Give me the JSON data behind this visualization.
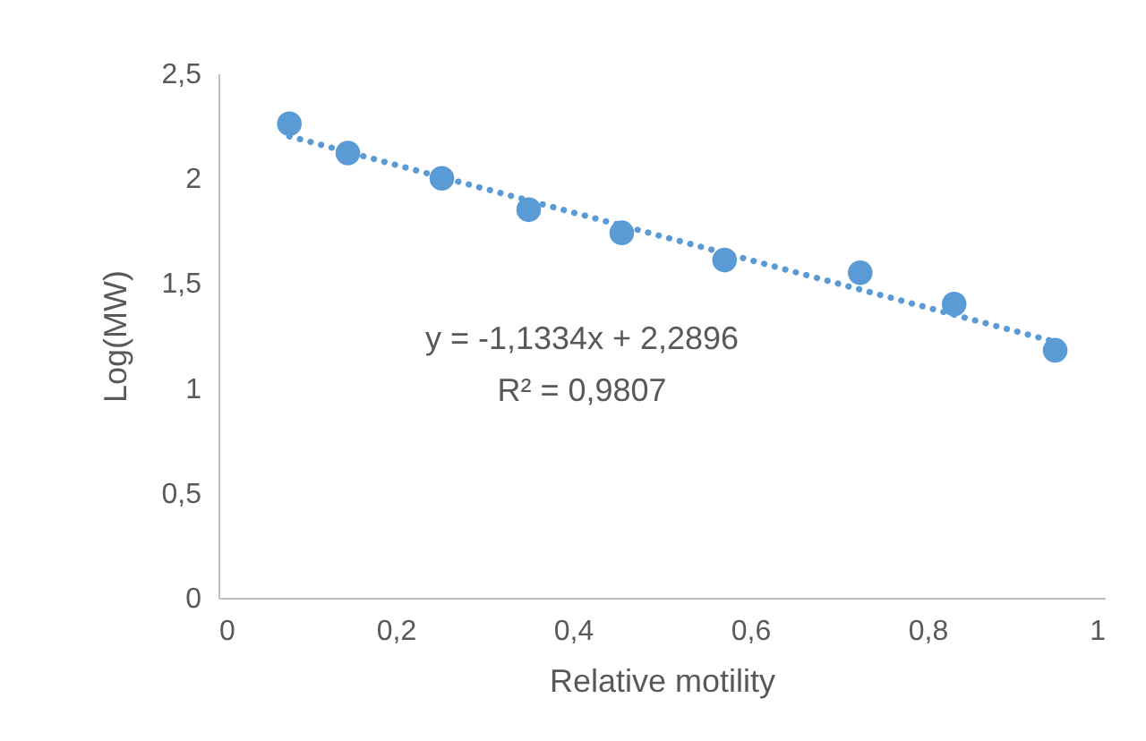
{
  "chart_data": {
    "type": "scatter",
    "xlabel": "Relative motility",
    "ylabel": "Log(MW)",
    "series": [
      {
        "color": "#5b9bd5",
        "marker": "circle",
        "x": [
          0.08,
          0.146,
          0.252,
          0.35,
          0.455,
          0.571,
          0.724,
          0.83,
          0.944
        ],
        "values": [
          2.26,
          2.12,
          2.0,
          1.85,
          1.74,
          1.61,
          1.55,
          1.4,
          1.18
        ]
      },
      {
        "type": "line",
        "color": "#5b9bd5",
        "line_style": "dotted",
        "marker": "none",
        "x": [
          0.08,
          0.944
        ],
        "values": [
          2.2,
          1.22
        ]
      }
    ],
    "xlim": [
      0,
      1
    ],
    "xticks": [
      0,
      {
        "value": 0.2,
        "label": "0,2"
      },
      {
        "value": 0.4,
        "label": "0,4"
      },
      {
        "value": 0.6,
        "label": "0,6"
      },
      {
        "value": 0.8,
        "label": "0,8"
      },
      1
    ],
    "ylim": [
      0,
      2.5
    ],
    "yticks": [
      0,
      {
        "value": 0.5,
        "label": "0,5"
      },
      1,
      {
        "value": 1.5,
        "label": "1,5"
      },
      2,
      {
        "value": 2.5,
        "label": "2,5"
      }
    ],
    "grid": false,
    "annotations": [
      "y = -1,1334x + 2,2896",
      "R² = 0,9807"
    ]
  }
}
